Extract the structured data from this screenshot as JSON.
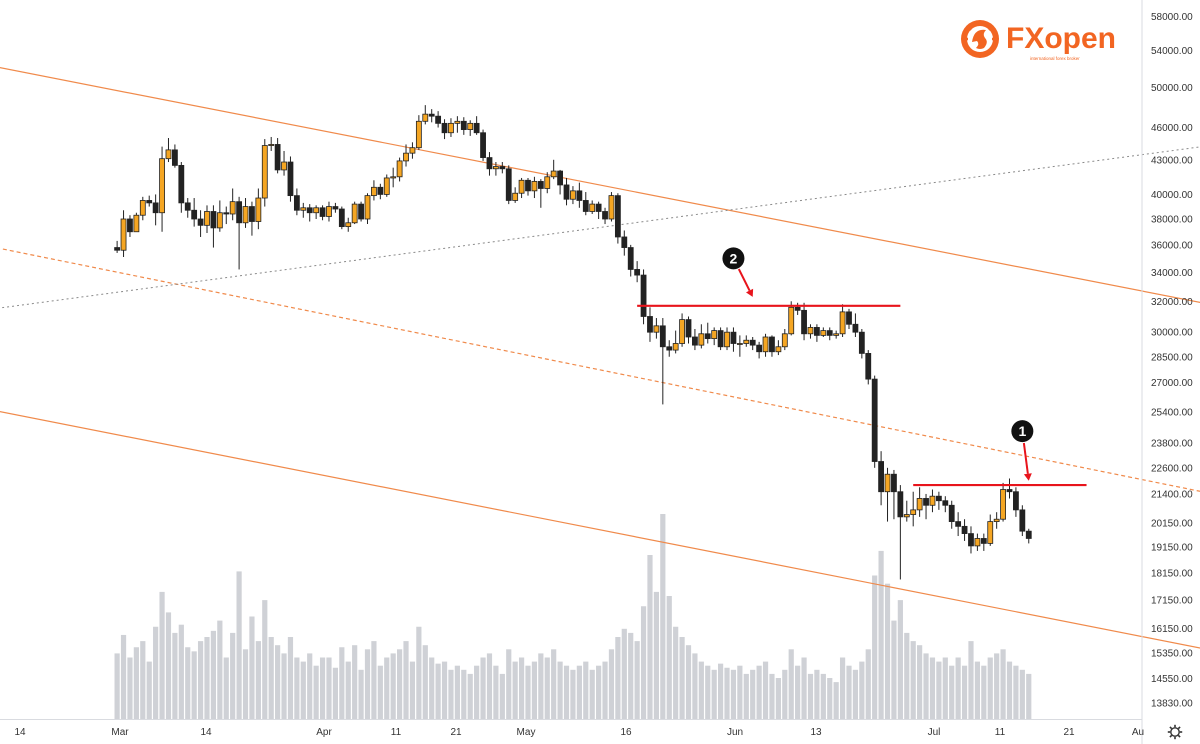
{
  "brand": {
    "logo_text": "FXopen",
    "logo_sub": "international forex broker",
    "color": "#f26522"
  },
  "ui": {
    "settings_icon": "gear-icon"
  },
  "colors": {
    "up": "#f5a623",
    "down": "#222222",
    "channel": "#f08a4b",
    "resistance": "#e8141c",
    "trendline": "#8a8a8a",
    "volume": "#cfd1d6",
    "grid": "#eef0f3"
  },
  "chart_data": {
    "type": "candlestick",
    "scale": "log",
    "ylim": [
      13500,
      58500
    ],
    "y_ticks": [
      "58000.00",
      "54000.00",
      "50000.00",
      "46000.00",
      "43000.00",
      "40000.00",
      "38000.00",
      "36000.00",
      "34000.00",
      "32000.00",
      "30000.00",
      "28500.00",
      "27000.00",
      "25400.00",
      "23800.00",
      "22600.00",
      "21400.00",
      "20150.00",
      "19150.00",
      "18150.00",
      "17150.00",
      "16150.00",
      "15350.00",
      "14550.00",
      "13830.00"
    ],
    "x_ticks": [
      "14",
      "Mar",
      "14",
      "Apr",
      "11",
      "21",
      "May",
      "16",
      "Jun",
      "13",
      "Jul",
      "11",
      "21",
      "Au"
    ],
    "candles": [
      [
        21,
        35800,
        35600,
        36300,
        35400,
        0.32
      ],
      [
        22,
        35600,
        38000,
        38700,
        35100,
        0.41
      ],
      [
        23,
        38000,
        37000,
        38300,
        36600,
        0.3
      ],
      [
        24,
        37000,
        38300,
        38500,
        37000,
        0.35
      ],
      [
        25,
        38300,
        39500,
        39800,
        37900,
        0.38
      ],
      [
        26,
        39500,
        39300,
        39900,
        39000,
        0.28
      ],
      [
        27,
        39300,
        38500,
        40000,
        37500,
        0.45
      ],
      [
        28,
        38500,
        43100,
        44200,
        37000,
        0.62
      ],
      [
        29,
        43100,
        43900,
        45000,
        42800,
        0.52
      ],
      [
        30,
        43900,
        42500,
        44400,
        42300,
        0.42
      ],
      [
        31,
        42500,
        39300,
        42800,
        38500,
        0.46
      ],
      [
        32,
        39300,
        38700,
        39700,
        38100,
        0.35
      ],
      [
        33,
        38700,
        38000,
        39700,
        37400,
        0.33
      ],
      [
        34,
        38000,
        37500,
        38700,
        36600,
        0.38
      ],
      [
        35,
        37500,
        38600,
        39100,
        36900,
        0.4
      ],
      [
        36,
        38600,
        37300,
        39100,
        35800,
        0.43
      ],
      [
        37,
        37300,
        38500,
        39500,
        37000,
        0.48
      ],
      [
        38,
        38500,
        38400,
        39000,
        37600,
        0.3
      ],
      [
        39,
        38400,
        39400,
        40500,
        37900,
        0.42
      ],
      [
        40,
        39400,
        37700,
        39800,
        34200,
        0.72
      ],
      [
        41,
        37700,
        39000,
        39700,
        37300,
        0.34
      ],
      [
        42,
        39000,
        37800,
        39400,
        36700,
        0.5
      ],
      [
        43,
        37800,
        39700,
        40500,
        37200,
        0.38
      ],
      [
        44,
        39700,
        44300,
        44900,
        39000,
        0.58
      ],
      [
        45,
        44300,
        44400,
        45100,
        43800,
        0.4
      ],
      [
        46,
        44400,
        42100,
        45000,
        41800,
        0.36
      ],
      [
        47,
        42100,
        42800,
        43800,
        41600,
        0.32
      ],
      [
        48,
        42800,
        39900,
        43300,
        39400,
        0.4
      ],
      [
        49,
        39900,
        38700,
        40500,
        38300,
        0.3
      ],
      [
        50,
        38700,
        38900,
        39300,
        38100,
        0.28
      ],
      [
        51,
        38900,
        38500,
        39200,
        37800,
        0.32
      ],
      [
        52,
        38500,
        38900,
        39100,
        38000,
        0.26
      ],
      [
        53,
        38900,
        38200,
        39100,
        37900,
        0.3
      ],
      [
        54,
        38200,
        39000,
        39400,
        37800,
        0.3
      ],
      [
        55,
        39000,
        38800,
        39300,
        38500,
        0.25
      ],
      [
        56,
        38800,
        37400,
        39000,
        37200,
        0.35
      ],
      [
        57,
        37400,
        37700,
        38100,
        37000,
        0.28
      ],
      [
        58,
        37700,
        39200,
        39400,
        37600,
        0.36
      ],
      [
        59,
        39200,
        38000,
        39400,
        37800,
        0.24
      ],
      [
        60,
        38000,
        39900,
        40100,
        37600,
        0.34
      ],
      [
        61,
        39900,
        40600,
        41200,
        39500,
        0.38
      ],
      [
        62,
        40600,
        40000,
        40900,
        39600,
        0.26
      ],
      [
        63,
        40000,
        41400,
        41700,
        39800,
        0.3
      ],
      [
        64,
        41400,
        41500,
        42300,
        40600,
        0.32
      ],
      [
        65,
        41500,
        42900,
        43200,
        41100,
        0.34
      ],
      [
        66,
        42900,
        43600,
        44400,
        42400,
        0.38
      ],
      [
        67,
        43600,
        44100,
        44600,
        43100,
        0.28
      ],
      [
        68,
        44100,
        46600,
        47200,
        43900,
        0.45
      ],
      [
        69,
        46600,
        47300,
        48200,
        46300,
        0.36
      ],
      [
        70,
        47300,
        47100,
        47800,
        46500,
        0.3
      ],
      [
        71,
        47100,
        46400,
        47600,
        46000,
        0.27
      ],
      [
        72,
        46400,
        45500,
        46800,
        44900,
        0.28
      ],
      [
        73,
        45500,
        46400,
        46900,
        45100,
        0.24
      ],
      [
        74,
        46400,
        46600,
        47100,
        45500,
        0.26
      ],
      [
        75,
        46600,
        45800,
        47000,
        45300,
        0.24
      ],
      [
        76,
        45800,
        46400,
        46700,
        45200,
        0.22
      ],
      [
        77,
        46400,
        45500,
        47100,
        45300,
        0.26
      ],
      [
        78,
        45500,
        43200,
        45800,
        42900,
        0.3
      ],
      [
        79,
        43200,
        42200,
        43700,
        41600,
        0.32
      ],
      [
        80,
        42200,
        42400,
        42800,
        41600,
        0.26
      ],
      [
        81,
        42400,
        42200,
        42800,
        41800,
        0.22
      ],
      [
        82,
        42200,
        39500,
        42500,
        39200,
        0.34
      ],
      [
        83,
        39500,
        40100,
        40600,
        39300,
        0.28
      ],
      [
        84,
        40100,
        41200,
        41400,
        39700,
        0.3
      ],
      [
        85,
        41200,
        40300,
        41400,
        39900,
        0.26
      ],
      [
        86,
        40300,
        41100,
        41500,
        39700,
        0.28
      ],
      [
        87,
        41100,
        40500,
        41300,
        38900,
        0.32
      ],
      [
        88,
        40500,
        41500,
        41900,
        40100,
        0.3
      ],
      [
        89,
        41500,
        42000,
        43000,
        41300,
        0.34
      ],
      [
        90,
        42000,
        40800,
        42100,
        40000,
        0.28
      ],
      [
        91,
        40800,
        39600,
        41400,
        39100,
        0.26
      ],
      [
        92,
        39600,
        40300,
        40700,
        39200,
        0.24
      ],
      [
        93,
        40300,
        39500,
        41000,
        38900,
        0.26
      ],
      [
        94,
        39500,
        38600,
        40200,
        38300,
        0.28
      ],
      [
        95,
        38600,
        39200,
        39500,
        38400,
        0.24
      ],
      [
        96,
        39200,
        38600,
        39400,
        38000,
        0.26
      ],
      [
        97,
        38600,
        38000,
        38900,
        37600,
        0.28
      ],
      [
        98,
        38000,
        39900,
        40200,
        37800,
        0.34
      ],
      [
        99,
        39900,
        36600,
        40100,
        36100,
        0.4
      ],
      [
        100,
        36600,
        35800,
        37100,
        35200,
        0.44
      ],
      [
        101,
        35800,
        34200,
        36000,
        33700,
        0.42
      ],
      [
        102,
        34200,
        33800,
        34800,
        33300,
        0.38
      ],
      [
        103,
        33800,
        31000,
        34200,
        30500,
        0.55
      ],
      [
        104,
        31000,
        30000,
        31600,
        29400,
        0.8
      ],
      [
        105,
        30000,
        30400,
        30900,
        29600,
        0.62
      ],
      [
        106,
        30400,
        29100,
        30900,
        25800,
        1.0
      ],
      [
        107,
        29100,
        28900,
        29500,
        28500,
        0.6
      ],
      [
        108,
        28900,
        29300,
        30100,
        28700,
        0.45
      ],
      [
        109,
        29300,
        30800,
        31200,
        29100,
        0.4
      ],
      [
        110,
        30800,
        29700,
        31000,
        29300,
        0.36
      ],
      [
        111,
        29700,
        29200,
        30200,
        28900,
        0.32
      ],
      [
        112,
        29200,
        29900,
        30500,
        29000,
        0.28
      ],
      [
        113,
        29900,
        29600,
        30600,
        29300,
        0.26
      ],
      [
        114,
        29600,
        30100,
        30300,
        29200,
        0.24
      ],
      [
        115,
        30100,
        29100,
        30300,
        28900,
        0.27
      ],
      [
        116,
        29100,
        30000,
        30300,
        28900,
        0.25
      ],
      [
        117,
        30000,
        29300,
        30300,
        28800,
        0.24
      ],
      [
        118,
        29300,
        29300,
        29800,
        28500,
        0.26
      ],
      [
        119,
        29300,
        29500,
        29800,
        29100,
        0.22
      ],
      [
        120,
        29500,
        29200,
        29700,
        28900,
        0.24
      ],
      [
        121,
        29200,
        28800,
        29400,
        28400,
        0.26
      ],
      [
        122,
        28800,
        29700,
        29900,
        28500,
        0.28
      ],
      [
        123,
        29700,
        28800,
        29800,
        28500,
        0.22
      ],
      [
        124,
        28800,
        29100,
        29500,
        28600,
        0.2
      ],
      [
        125,
        29100,
        29900,
        30200,
        28900,
        0.24
      ],
      [
        126,
        29900,
        31600,
        32000,
        29800,
        0.34
      ],
      [
        127,
        31600,
        31400,
        31900,
        31100,
        0.26
      ],
      [
        128,
        31400,
        29900,
        31900,
        29500,
        0.3
      ],
      [
        129,
        29900,
        30300,
        30500,
        29600,
        0.22
      ],
      [
        130,
        30300,
        29800,
        30500,
        29400,
        0.24
      ],
      [
        131,
        29800,
        30100,
        30300,
        29700,
        0.22
      ],
      [
        132,
        30100,
        29800,
        30300,
        29500,
        0.2
      ],
      [
        133,
        29800,
        29900,
        30100,
        29600,
        0.18
      ],
      [
        134,
        29900,
        31300,
        31800,
        29700,
        0.3
      ],
      [
        135,
        31300,
        30500,
        31500,
        30200,
        0.26
      ],
      [
        136,
        30500,
        30000,
        31200,
        29700,
        0.24
      ],
      [
        137,
        30000,
        28700,
        30200,
        28400,
        0.28
      ],
      [
        138,
        28700,
        27200,
        28900,
        26900,
        0.34
      ],
      [
        139,
        27200,
        22900,
        27400,
        22600,
        0.7
      ],
      [
        140,
        22900,
        21500,
        23400,
        20900,
        0.82
      ],
      [
        141,
        21500,
        22300,
        22600,
        20200,
        0.66
      ],
      [
        142,
        22300,
        21500,
        22500,
        20300,
        0.48
      ],
      [
        143,
        21500,
        20400,
        21800,
        17900,
        0.58
      ],
      [
        144,
        20400,
        20500,
        21100,
        20200,
        0.42
      ],
      [
        145,
        20500,
        20700,
        21500,
        20000,
        0.38
      ],
      [
        146,
        20700,
        21200,
        21700,
        20400,
        0.36
      ],
      [
        147,
        21200,
        20900,
        21400,
        20300,
        0.32
      ],
      [
        148,
        20900,
        21300,
        21600,
        20600,
        0.3
      ],
      [
        149,
        21300,
        21100,
        21500,
        20700,
        0.28
      ],
      [
        150,
        21100,
        20900,
        21300,
        20600,
        0.3
      ],
      [
        151,
        20900,
        20200,
        21100,
        19900,
        0.26
      ],
      [
        152,
        20200,
        20000,
        20600,
        19600,
        0.3
      ],
      [
        153,
        20000,
        19700,
        20300,
        19400,
        0.26
      ],
      [
        154,
        19700,
        19200,
        20000,
        18900,
        0.38
      ],
      [
        155,
        19200,
        19500,
        19700,
        19000,
        0.28
      ],
      [
        156,
        19500,
        19300,
        19700,
        19000,
        0.26
      ],
      [
        157,
        19300,
        20200,
        20500,
        19200,
        0.3
      ],
      [
        158,
        20200,
        20300,
        20600,
        19900,
        0.32
      ],
      [
        159,
        20300,
        21600,
        21900,
        20200,
        0.34
      ],
      [
        160,
        21600,
        21500,
        22100,
        21200,
        0.28
      ],
      [
        161,
        21500,
        20700,
        21700,
        20400,
        0.26
      ],
      [
        162,
        20700,
        19800,
        20900,
        19600,
        0.24
      ],
      [
        163,
        19800,
        19500,
        19900,
        19300,
        0.22
      ]
    ],
    "channel_lines": [
      {
        "style": "solid",
        "from": [
          0,
          52500
        ],
        "to": [
          190,
          31900
        ]
      },
      {
        "style": "dashed",
        "from": [
          0,
          36000
        ],
        "to": [
          190,
          21500
        ]
      },
      {
        "style": "solid",
        "from": [
          0,
          25600
        ],
        "to": [
          190,
          15500
        ]
      }
    ],
    "trendline": {
      "style": "dotted",
      "from": [
        0,
        31400
      ],
      "to": [
        190,
        44200
      ]
    },
    "resistance_lines": [
      {
        "y": 31700,
        "x_from": 102,
        "x_to": 143
      },
      {
        "y": 21800,
        "x_from": 145,
        "x_to": 172
      }
    ],
    "annotations": [
      {
        "label": "2",
        "circle": [
          117,
          35000
        ],
        "arrow_to": [
          120,
          32300
        ]
      },
      {
        "label": "1",
        "circle": [
          162,
          24400
        ],
        "arrow_to": [
          163,
          22000
        ]
      }
    ]
  }
}
